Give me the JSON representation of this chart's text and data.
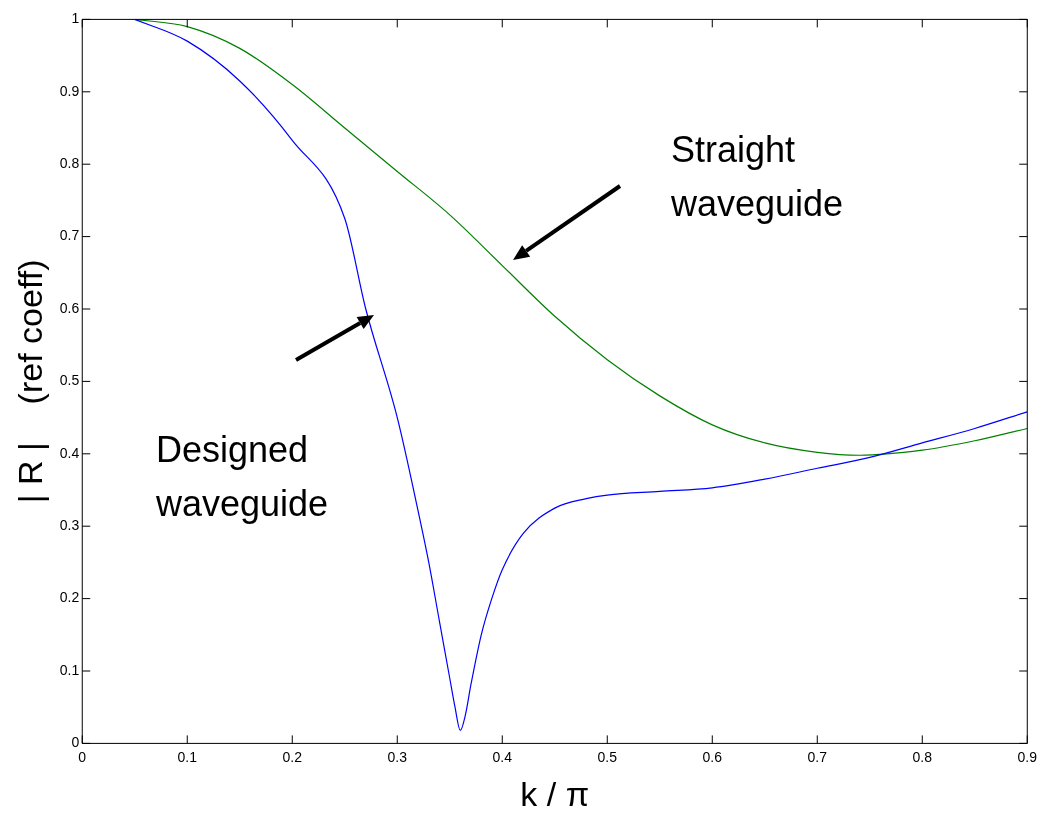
{
  "chart_data": {
    "type": "line",
    "xlabel": "k / π",
    "ylabel": "| R |    (ref coeff)",
    "xlim": [
      0,
      0.9
    ],
    "ylim": [
      0,
      1
    ],
    "xticks": [
      0,
      0.1,
      0.2,
      0.3,
      0.4,
      0.5,
      0.6,
      0.7,
      0.8,
      0.9
    ],
    "yticks": [
      0,
      0.1,
      0.2,
      0.3,
      0.4,
      0.5,
      0.6,
      0.7,
      0.8,
      0.9,
      1
    ],
    "grid": false,
    "legend": false,
    "marker": "none",
    "line_style": "solid",
    "series": [
      {
        "color": "#0000ff",
        "x": [
          0.05,
          0.1,
          0.15,
          0.2,
          0.25,
          0.27,
          0.3,
          0.32,
          0.33,
          0.34,
          0.35,
          0.355,
          0.36,
          0.365,
          0.37,
          0.38,
          0.39,
          0.4,
          0.42,
          0.45,
          0.48,
          0.5,
          0.55,
          0.6,
          0.65,
          0.7,
          0.75,
          0.8,
          0.85,
          0.9
        ],
        "values": [
          1,
          0.97,
          0.915,
          0.833,
          0.725,
          0.6,
          0.45,
          0.32,
          0.25,
          0.17,
          0.09,
          0.05,
          0.018,
          0.04,
          0.08,
          0.15,
          0.2,
          0.24,
          0.29,
          0.325,
          0.338,
          0.343,
          0.348,
          0.353,
          0.365,
          0.38,
          0.395,
          0.415,
          0.435,
          0.458
        ]
      },
      {
        "color": "#008000",
        "x": [
          0.05,
          0.1,
          0.15,
          0.2,
          0.25,
          0.3,
          0.35,
          0.4,
          0.45,
          0.5,
          0.55,
          0.6,
          0.65,
          0.7,
          0.74,
          0.8,
          0.85,
          0.9
        ],
        "values": [
          1,
          0.99,
          0.96,
          0.91,
          0.85,
          0.79,
          0.73,
          0.66,
          0.59,
          0.53,
          0.48,
          0.44,
          0.415,
          0.402,
          0.398,
          0.405,
          0.418,
          0.435
        ]
      }
    ],
    "annotations": [
      "Straight waveguide",
      "Designed waveguide"
    ]
  }
}
